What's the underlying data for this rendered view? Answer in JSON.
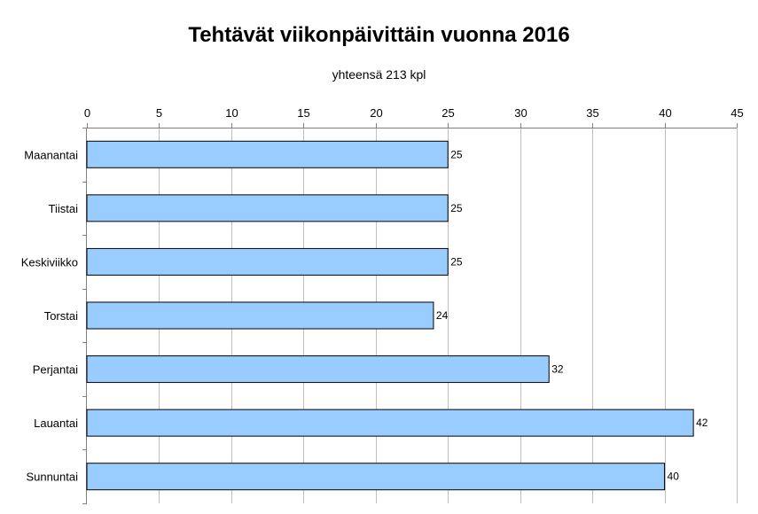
{
  "chart_data": {
    "type": "bar",
    "orientation": "horizontal",
    "title": "Tehtävät viikonpäivittäin vuonna 2016",
    "subtitle": "yhteensä 213 kpl",
    "categories": [
      "Maanantai",
      "Tiistai",
      "Keskiviikko",
      "Torstai",
      "Perjantai",
      "Lauantai",
      "Sunnuntai"
    ],
    "values": [
      25,
      25,
      25,
      24,
      32,
      42,
      40
    ],
    "xlim": [
      0,
      45
    ],
    "xticks": [
      0,
      5,
      10,
      15,
      20,
      25,
      30,
      35,
      40,
      45
    ],
    "xaxis_position": "top",
    "grid": true,
    "data_labels": true,
    "bar_color": "#99ccff",
    "bar_border_color": "#000000",
    "grid_color": "#c0c0c0"
  }
}
